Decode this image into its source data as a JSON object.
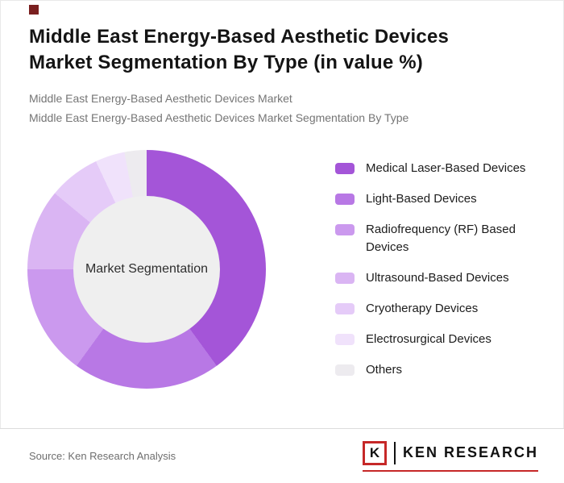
{
  "colors": {
    "accent_square": "#7a1f1f",
    "logo_red": "#c62828"
  },
  "header": {
    "title": "Middle East Energy-Based Aesthetic Devices Market Segmentation By Type (in value %)",
    "subtitle1": "Middle East Energy-Based Aesthetic Devices Market",
    "subtitle2": "Middle East Energy-Based Aesthetic Devices Market Segmentation By Type"
  },
  "chart_data": {
    "type": "pie",
    "donut": true,
    "title": "Middle East Energy-Based Aesthetic Devices Market Segmentation By Type (in value %)",
    "center_label": "Market Segmentation",
    "legend_position": "right",
    "start_angle_deg": 0,
    "units": "percent of value",
    "segments": [
      {
        "label": "Medical Laser-Based Devices",
        "value": 40,
        "color": "#a455d8"
      },
      {
        "label": "Light-Based Devices",
        "value": 20,
        "color": "#b878e5"
      },
      {
        "label": "Radiofrequency (RF) Based Devices",
        "value": 15,
        "color": "#cb99ee"
      },
      {
        "label": "Ultrasound-Based Devices",
        "value": 11,
        "color": "#dab5f3"
      },
      {
        "label": "Cryotherapy Devices",
        "value": 7,
        "color": "#e5cbf8"
      },
      {
        "label": "Electrosurgical Devices",
        "value": 4,
        "color": "#f0e2fb"
      },
      {
        "label": "Others",
        "value": 3,
        "color": "#edebef"
      }
    ]
  },
  "footer": {
    "source": "Source: Ken Research Analysis",
    "logo_letter": "K",
    "logo_text": "KEN RESEARCH"
  }
}
